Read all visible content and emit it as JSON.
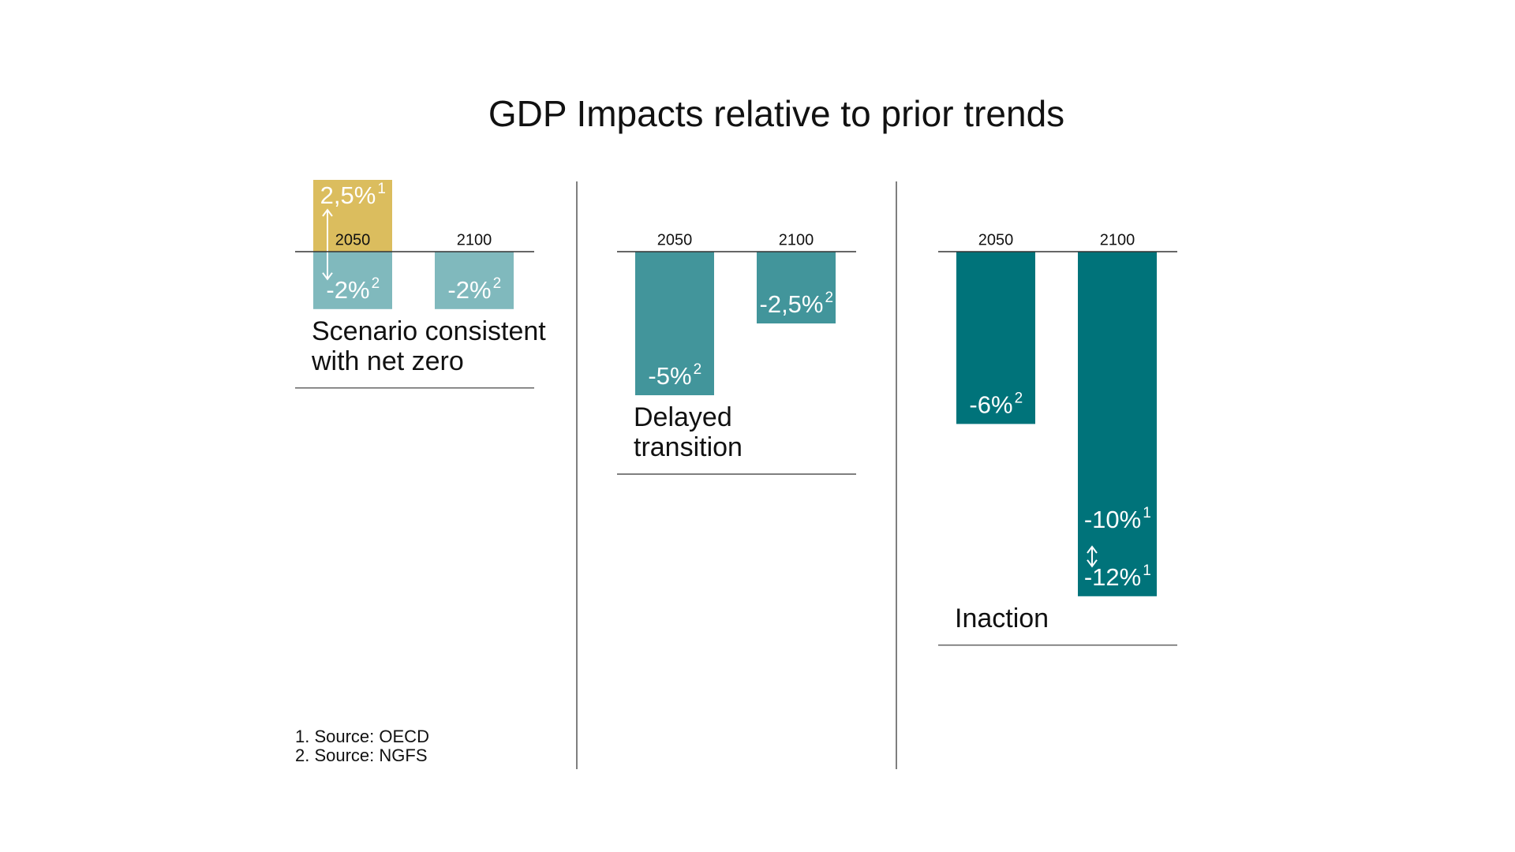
{
  "title": "GDP Impacts relative to prior trends",
  "footnotes": [
    "1. Source: OECD",
    "2. Source: NGFS"
  ],
  "chart_data": [
    {
      "type": "bar",
      "label_lines": [
        "Scenario consistent",
        "with net zero"
      ],
      "categories": [
        "2050",
        "2100"
      ],
      "ylim": [
        -14,
        3
      ],
      "series": [
        {
          "color": "#dbbd5e",
          "values": [
            2.5,
            null
          ],
          "value_labels": [
            "2,5%",
            null
          ],
          "notes": [
            "1",
            null
          ]
        },
        {
          "color": "#80b9bd",
          "values": [
            -2,
            -2
          ],
          "value_labels": [
            "-2%",
            "-2%"
          ],
          "notes": [
            "2",
            "2"
          ]
        }
      ]
    },
    {
      "type": "bar",
      "label_lines": [
        "Delayed",
        "transition"
      ],
      "categories": [
        "2050",
        "2100"
      ],
      "ylim": [
        -14,
        3
      ],
      "series": [
        {
          "color": "#42959b",
          "values": [
            -5,
            -2.5
          ],
          "value_labels": [
            "-5%",
            "-2,5%"
          ],
          "notes": [
            "2",
            "2"
          ]
        }
      ]
    },
    {
      "type": "bar",
      "label_lines": [
        "Inaction"
      ],
      "categories": [
        "2050",
        "2100"
      ],
      "ylim": [
        -14,
        3
      ],
      "series": [
        {
          "color": "#00737a",
          "values": [
            null,
            -12
          ],
          "value_labels": [
            null,
            "-12%"
          ],
          "notes": [
            null,
            "1"
          ]
        },
        {
          "color": "#00737a",
          "values": [
            -6,
            -10
          ],
          "value_labels": [
            "-6%",
            "-10%"
          ],
          "notes": [
            "2",
            "1"
          ]
        }
      ]
    }
  ]
}
